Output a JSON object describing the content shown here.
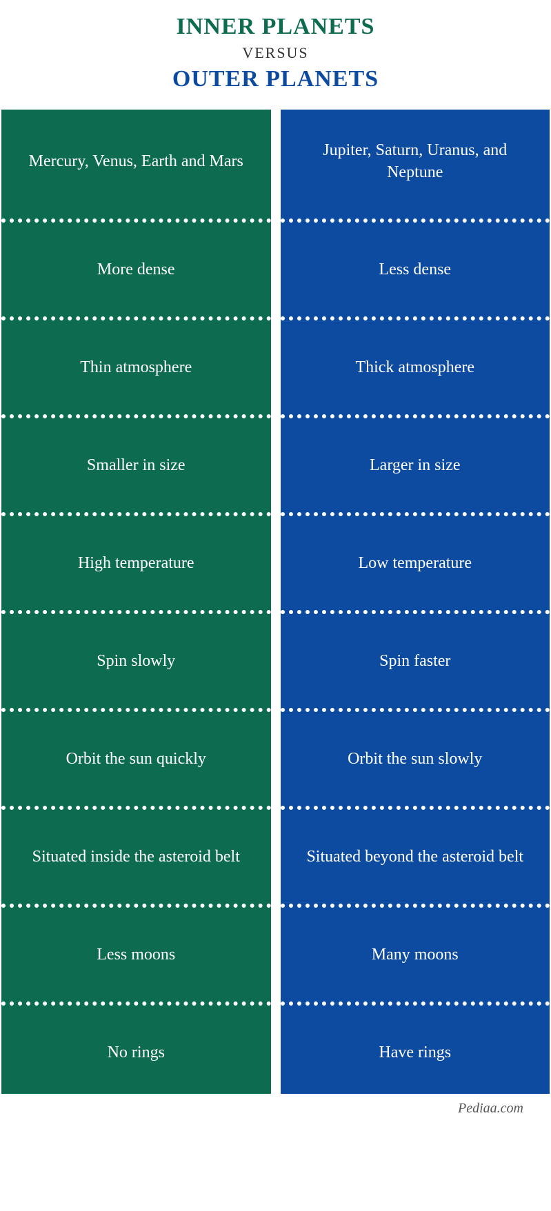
{
  "header": {
    "title_inner": "INNER PLANETS",
    "versus": "VERSUS",
    "title_outer": "OUTER PLANETS",
    "inner_color": "#0d6b4f",
    "outer_color": "#0d4ba0"
  },
  "columns": {
    "inner": {
      "bg_color": "#0d6b4f",
      "text_color": "#ffffff",
      "items": [
        "Mercury, Venus, Earth and Mars",
        "More dense",
        "Thin atmosphere",
        "Smaller in size",
        "High temperature",
        "Spin slowly",
        "Orbit the sun quickly",
        "Situated inside the asteroid belt",
        "Less moons",
        "No rings"
      ]
    },
    "outer": {
      "bg_color": "#0d4ba0",
      "text_color": "#ffffff",
      "items": [
        "Jupiter, Saturn, Uranus, and Neptune",
        "Less dense",
        "Thick atmosphere",
        "Larger in size",
        "Low temperature",
        "Spin faster",
        "Orbit the sun slowly",
        "Situated beyond the asteroid belt",
        "Many moons",
        "Have rings"
      ]
    }
  },
  "divider": {
    "color": "#ffffff",
    "dot_size": 6
  },
  "footer": {
    "text": "Pediaa.com",
    "color": "#555555"
  }
}
